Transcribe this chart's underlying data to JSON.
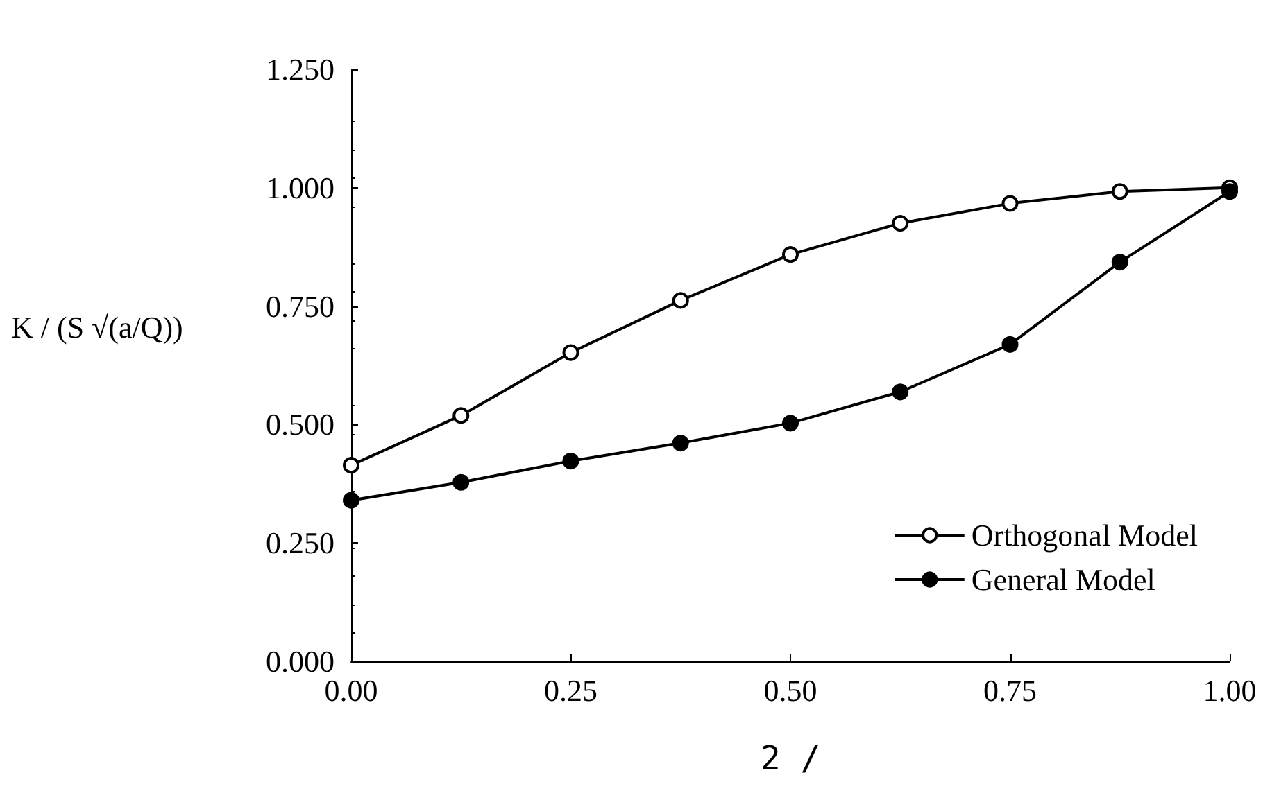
{
  "chart_data": {
    "type": "line",
    "xlabel": "2 /",
    "ylabel": "K / (S √(a/Q))",
    "x": [
      0,
      0.125,
      0.25,
      0.375,
      0.5,
      0.625,
      0.75,
      0.875,
      1.0
    ],
    "series": [
      {
        "name": "Orthogonal Model",
        "color": "#000000",
        "marker": "circle",
        "values": [
          0.414,
          0.519,
          0.652,
          0.762,
          0.859,
          0.925,
          0.967,
          0.992,
          1.0
        ]
      },
      {
        "name": "General Model",
        "color": "#000000",
        "marker": "circle",
        "values": [
          0.34,
          0.378,
          0.423,
          0.461,
          0.503,
          0.569,
          0.669,
          0.843,
          0.992
        ]
      }
    ],
    "xlim": [
      0,
      1
    ],
    "xticks": [
      {
        "value": 0,
        "label": "0.00"
      },
      {
        "value": 0.25,
        "label": "0.25"
      },
      {
        "value": 0.5,
        "label": "0.50"
      },
      {
        "value": 0.75,
        "label": "0.75"
      },
      {
        "value": 1,
        "label": "1.00"
      }
    ],
    "ylim": [
      0,
      1.25
    ],
    "yticks": [
      {
        "value": 0,
        "label": "0.000"
      },
      {
        "value": 0.25,
        "label": "0.250"
      },
      {
        "value": 0.5,
        "label": "0.500"
      },
      {
        "value": 0.75,
        "label": "0.750"
      },
      {
        "value": 1,
        "label": "1.000"
      },
      {
        "value": 1.25,
        "label": "1.250"
      }
    ],
    "grid": false,
    "legend": "bottom right",
    "line_style": "solid"
  }
}
